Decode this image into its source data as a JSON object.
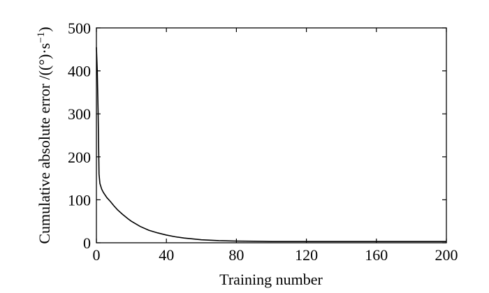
{
  "chart_data": {
    "type": "line",
    "xlabel": "Training number",
    "ylabel": "Cumulative absolute error /((°)·s",
    "ylabel_sup": "−1",
    "ylabel_close": ")",
    "xlim": [
      0,
      200
    ],
    "ylim": [
      0,
      500
    ],
    "xticks": [
      0,
      40,
      80,
      120,
      160,
      200
    ],
    "yticks": [
      0,
      100,
      200,
      300,
      400,
      500
    ],
    "grid": false,
    "series": [
      {
        "color": "#000000",
        "x": [
          0,
          0.5,
          1,
          1.5,
          2,
          3,
          4,
          6,
          8,
          10,
          12,
          15,
          18,
          20,
          25,
          30,
          35,
          40,
          45,
          50,
          55,
          60,
          70,
          80,
          90,
          100,
          120,
          140,
          160,
          180,
          200
        ],
        "y": [
          455,
          400,
          300,
          160,
          138,
          125,
          117,
          105,
          96,
          86,
          77,
          66,
          56,
          50,
          38,
          29,
          23,
          18,
          14,
          11,
          9,
          7,
          5,
          4,
          3.5,
          3,
          3,
          3,
          3,
          3,
          3
        ]
      }
    ]
  }
}
